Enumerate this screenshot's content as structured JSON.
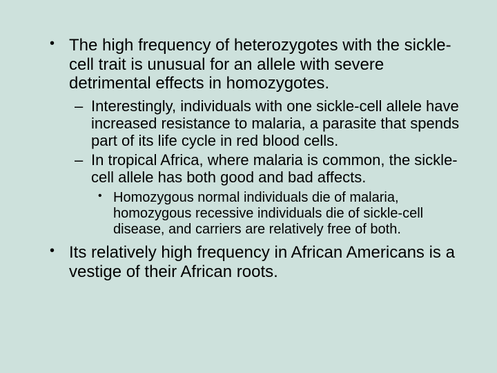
{
  "colors": {
    "background": "#cde1dc",
    "text": "#000000"
  },
  "typography": {
    "font_family": "Arial",
    "l1_fontsize": 24,
    "l2_fontsize": 22,
    "l3_fontsize": 20,
    "line_height": 1.15
  },
  "bullets": {
    "l1_marker": "•",
    "l2_marker": "–",
    "l3_marker": "•"
  },
  "content": {
    "item1": "The high frequency of heterozygotes with the sickle-cell trait is unusual for an allele with severe detrimental effects in homozygotes.",
    "item1_sub1": "Interestingly, individuals with one sickle-cell allele have increased resistance to malaria, a parasite that spends part of its life cycle in red blood cells.",
    "item1_sub2": "In tropical Africa, where malaria is common, the sickle-cell allele has both good and bad affects.",
    "item1_sub2_sub1": "Homozygous normal individuals die of malaria, homozygous recessive individuals die of sickle-cell disease, and carriers are relatively free of both.",
    "item2": "Its relatively high frequency in African Americans is a vestige of their African roots."
  }
}
